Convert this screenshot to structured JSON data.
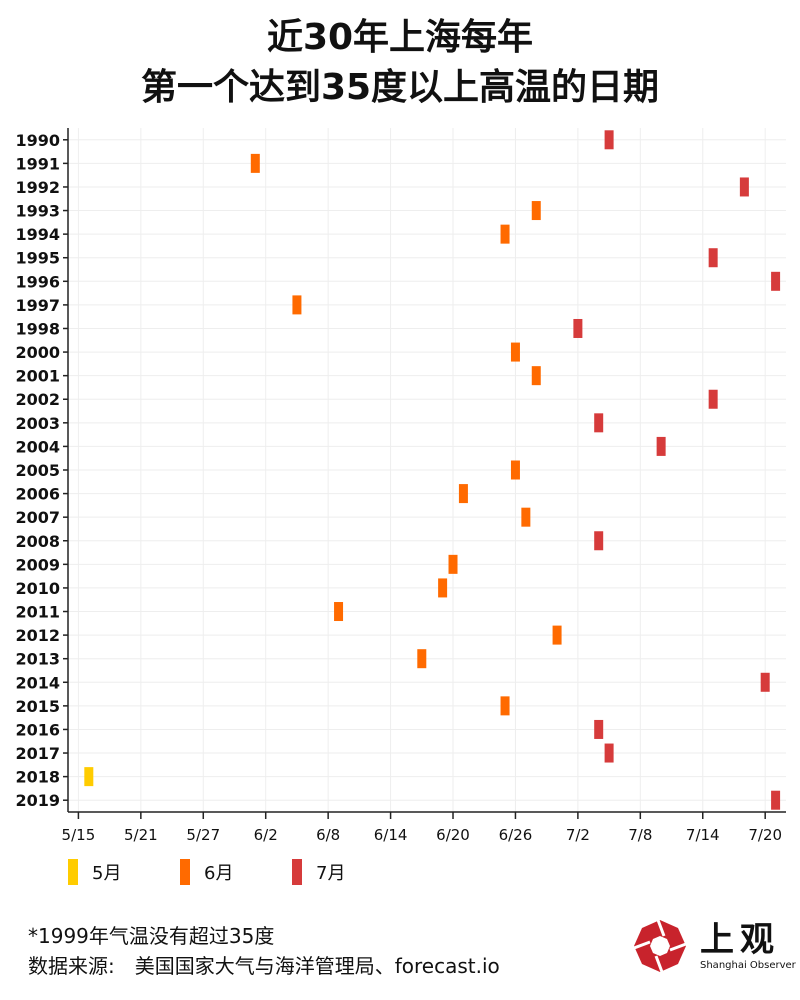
{
  "title_line1": "近30年上海每年",
  "title_line2": "第一个达到35度以上高温的日期",
  "note": "*1999年气温没有超过35度",
  "source": "数据来源:　美国国家大气与海洋管理局、forecast.io",
  "logo": {
    "text": "上观",
    "subtitle": "Shanghai Observer",
    "color": "#c8232c"
  },
  "legend": [
    {
      "label": "5月",
      "color": "#ffcc00"
    },
    {
      "label": "6月",
      "color": "#ff6a00"
    },
    {
      "label": "7月",
      "color": "#d63b3b"
    }
  ],
  "chart_data": {
    "type": "scatter",
    "title": "近30年上海每年第一个达到35度以上高温的日期",
    "xlabel": "",
    "ylabel": "",
    "x_ticks": [
      "5/15",
      "5/21",
      "5/27",
      "6/2",
      "6/8",
      "6/14",
      "6/20",
      "6/26",
      "7/2",
      "7/8",
      "7/14",
      "7/20"
    ],
    "xlim": [
      "5/14",
      "7/22"
    ],
    "grid": true,
    "legend_position": "bottom-left",
    "points": [
      {
        "year": "1990",
        "date": "7/5"
      },
      {
        "year": "1991",
        "date": "6/1"
      },
      {
        "year": "1992",
        "date": "7/18"
      },
      {
        "year": "1993",
        "date": "6/28"
      },
      {
        "year": "1994",
        "date": "6/25"
      },
      {
        "year": "1995",
        "date": "7/15"
      },
      {
        "year": "1996",
        "date": "7/21"
      },
      {
        "year": "1997",
        "date": "6/5"
      },
      {
        "year": "1998",
        "date": "7/2"
      },
      {
        "year": "2000",
        "date": "6/26"
      },
      {
        "year": "2001",
        "date": "6/28"
      },
      {
        "year": "2002",
        "date": "7/15"
      },
      {
        "year": "2003",
        "date": "7/4"
      },
      {
        "year": "2004",
        "date": "7/10"
      },
      {
        "year": "2005",
        "date": "6/26"
      },
      {
        "year": "2006",
        "date": "6/21"
      },
      {
        "year": "2007",
        "date": "6/27"
      },
      {
        "year": "2008",
        "date": "7/4"
      },
      {
        "year": "2009",
        "date": "6/20"
      },
      {
        "year": "2010",
        "date": "6/19"
      },
      {
        "year": "2011",
        "date": "6/9"
      },
      {
        "year": "2012",
        "date": "6/30"
      },
      {
        "year": "2013",
        "date": "6/17"
      },
      {
        "year": "2014",
        "date": "7/20"
      },
      {
        "year": "2015",
        "date": "6/25"
      },
      {
        "year": "2016",
        "date": "7/4"
      },
      {
        "year": "2017",
        "date": "7/5"
      },
      {
        "year": "2018",
        "date": "5/16"
      },
      {
        "year": "2019",
        "date": "7/21"
      }
    ]
  }
}
